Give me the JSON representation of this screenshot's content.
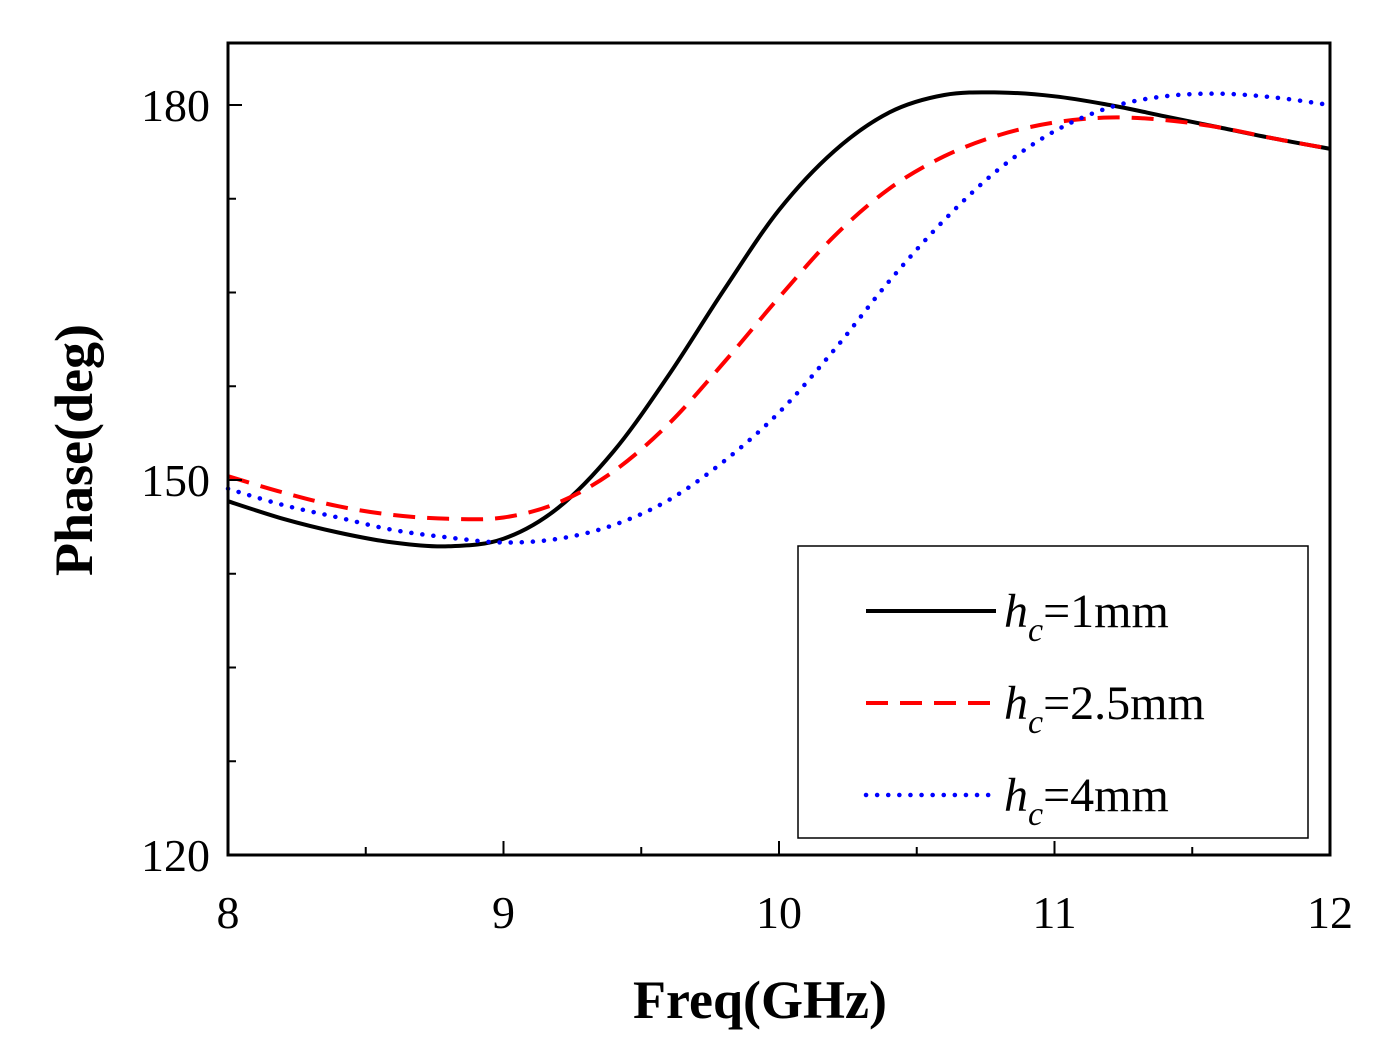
{
  "chart_data": {
    "type": "line",
    "title": "",
    "xlabel": "Freq(GHz)",
    "ylabel": "Phase(deg)",
    "xlim": [
      8,
      12
    ],
    "ylim": [
      120,
      186
    ],
    "x_ticks": [
      "8",
      "9",
      "10",
      "11",
      "12"
    ],
    "y_ticks": [
      "120",
      "150",
      "180"
    ],
    "legend_position": "bottom-right",
    "series": [
      {
        "name": "hc=1mm",
        "legend_base": "h",
        "legend_sub": "c",
        "legend_suffix": "=1mm",
        "color": "#000000",
        "style": "solid",
        "x": [
          8.0,
          8.2,
          8.4,
          8.6,
          8.8,
          9.0,
          9.2,
          9.4,
          9.6,
          9.8,
          10.0,
          10.2,
          10.4,
          10.6,
          10.8,
          11.0,
          11.2,
          11.4,
          11.6,
          11.8,
          12.0
        ],
        "y": [
          148.3,
          146.9,
          145.8,
          145.0,
          144.7,
          145.3,
          147.8,
          152.3,
          158.4,
          165.2,
          171.6,
          176.3,
          179.4,
          180.8,
          181.0,
          180.7,
          180.0,
          179.1,
          178.2,
          177.3,
          176.5
        ]
      },
      {
        "name": "hc=2.5mm",
        "legend_base": "h",
        "legend_sub": "c",
        "legend_suffix": "=2.5mm",
        "color": "#ff0000",
        "style": "dashed",
        "x": [
          8.0,
          8.2,
          8.4,
          8.6,
          8.8,
          9.0,
          9.2,
          9.4,
          9.6,
          9.8,
          10.0,
          10.2,
          10.4,
          10.6,
          10.8,
          11.0,
          11.2,
          11.4,
          11.6,
          11.8,
          12.0
        ],
        "y": [
          150.3,
          149.0,
          147.9,
          147.2,
          146.9,
          147.0,
          148.2,
          150.7,
          154.5,
          159.4,
          164.6,
          169.5,
          173.3,
          175.9,
          177.6,
          178.6,
          179.0,
          178.8,
          178.2,
          177.3,
          176.5
        ]
      },
      {
        "name": "hc=4mm",
        "legend_base": "h",
        "legend_sub": "c",
        "legend_suffix": "=4mm",
        "color": "#0000ff",
        "style": "dotted",
        "x": [
          8.0,
          8.2,
          8.4,
          8.6,
          8.8,
          9.0,
          9.2,
          9.4,
          9.6,
          9.8,
          10.0,
          10.2,
          10.4,
          10.6,
          10.8,
          11.0,
          11.2,
          11.4,
          11.6,
          11.8,
          12.0
        ],
        "y": [
          149.3,
          148.0,
          147.0,
          146.0,
          145.4,
          145.0,
          145.3,
          146.4,
          148.4,
          151.5,
          155.4,
          160.4,
          165.9,
          170.8,
          174.9,
          177.9,
          179.8,
          180.7,
          180.9,
          180.6,
          180.0
        ]
      }
    ]
  }
}
